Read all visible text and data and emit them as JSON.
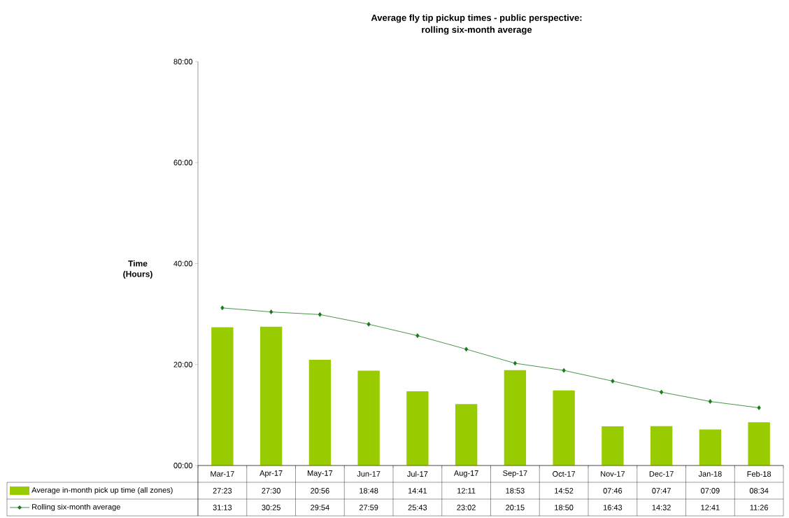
{
  "chart_data": {
    "type": "bar",
    "title": "Average fly tip pickup times - public perspective:\nrolling six-month average",
    "ylabel": "Time\n(Hours)",
    "categories": [
      "Mar-17",
      "Apr-17",
      "May-17",
      "Jun-17",
      "Jul-17",
      "Aug-17",
      "Sep-17",
      "Oct-17",
      "Nov-17",
      "Dec-17",
      "Jan-18",
      "Feb-18"
    ],
    "series": [
      {
        "name": "Average in-month pick up time (all zones)",
        "color": "#99cc00",
        "values": [
          27.3833,
          27.5,
          20.9333,
          18.8,
          14.6833,
          12.1833,
          18.8833,
          14.8667,
          7.7667,
          7.7833,
          7.15,
          8.5667
        ],
        "value_labels": [
          "27:23",
          "27:30",
          "20:56",
          "18:48",
          "14:41",
          "12:11",
          "18:53",
          "14:52",
          "07:46",
          "07:47",
          "07:09",
          "08:34"
        ]
      },
      {
        "name": "Rolling six-month average",
        "type": "line",
        "color": "#1a7a1a",
        "marker": "diamond",
        "values": [
          31.2167,
          30.4167,
          29.9,
          27.9833,
          25.7167,
          23.0333,
          20.25,
          18.8333,
          16.7167,
          14.5333,
          12.6833,
          11.4333
        ],
        "value_labels": [
          "31:13",
          "30:25",
          "29:54",
          "27:59",
          "25:43",
          "23:02",
          "20:15",
          "18:50",
          "16:43",
          "14:32",
          "12:41",
          "11:26"
        ]
      }
    ],
    "ylim": [
      0,
      80
    ],
    "yticks": [
      {
        "value": 0,
        "label": "00:00"
      },
      {
        "value": 20,
        "label": "20:00"
      },
      {
        "value": 40,
        "label": "40:00"
      },
      {
        "value": 60,
        "label": "60:00"
      },
      {
        "value": 80,
        "label": "80:00"
      }
    ],
    "legend": "bottom",
    "grid": false
  }
}
